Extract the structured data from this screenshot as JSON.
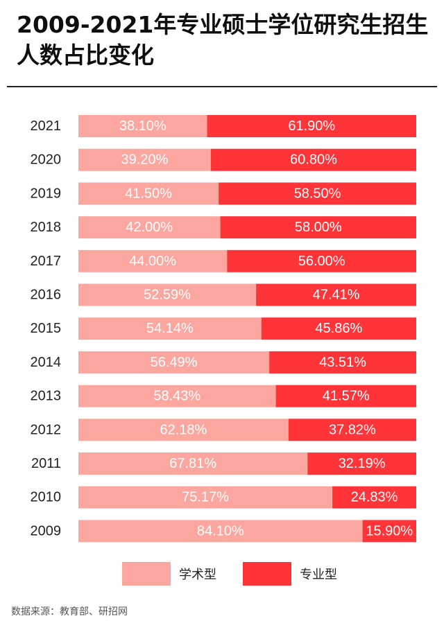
{
  "title": "2009-2021年专业硕士学位研究生招生人数占比变化",
  "colors": {
    "academic": "#fba7a0",
    "professional": "#fe3438"
  },
  "legend": {
    "academic": "学术型",
    "professional": "专业型"
  },
  "source": "数据来源：教育部、研招网",
  "chart_data": {
    "type": "bar",
    "orientation": "horizontal",
    "stacked": true,
    "normalized_percent": true,
    "categories": [
      "2021",
      "2020",
      "2019",
      "2018",
      "2017",
      "2016",
      "2015",
      "2014",
      "2013",
      "2012",
      "2011",
      "2010",
      "2009"
    ],
    "series": [
      {
        "name": "学术型",
        "values": [
          38.1,
          39.2,
          41.5,
          42.0,
          44.0,
          52.59,
          54.14,
          56.49,
          58.43,
          62.18,
          67.81,
          75.17,
          84.1
        ],
        "labels": [
          "38.10%",
          "39.20%",
          "41.50%",
          "42.00%",
          "44.00%",
          "52.59%",
          "54.14%",
          "56.49%",
          "58.43%",
          "62.18%",
          "67.81%",
          "75.17%",
          "84.10%"
        ]
      },
      {
        "name": "专业型",
        "values": [
          61.9,
          60.8,
          58.5,
          58.0,
          56.0,
          47.41,
          45.86,
          43.51,
          41.57,
          37.82,
          32.19,
          24.83,
          15.9
        ],
        "labels": [
          "61.90%",
          "60.80%",
          "58.50%",
          "58.00%",
          "56.00%",
          "47.41%",
          "45.86%",
          "43.51%",
          "41.57%",
          "37.82%",
          "32.19%",
          "24.83%",
          "15.90%"
        ]
      }
    ],
    "xlim": [
      0,
      100
    ],
    "grid": false,
    "legend_position": "bottom"
  }
}
